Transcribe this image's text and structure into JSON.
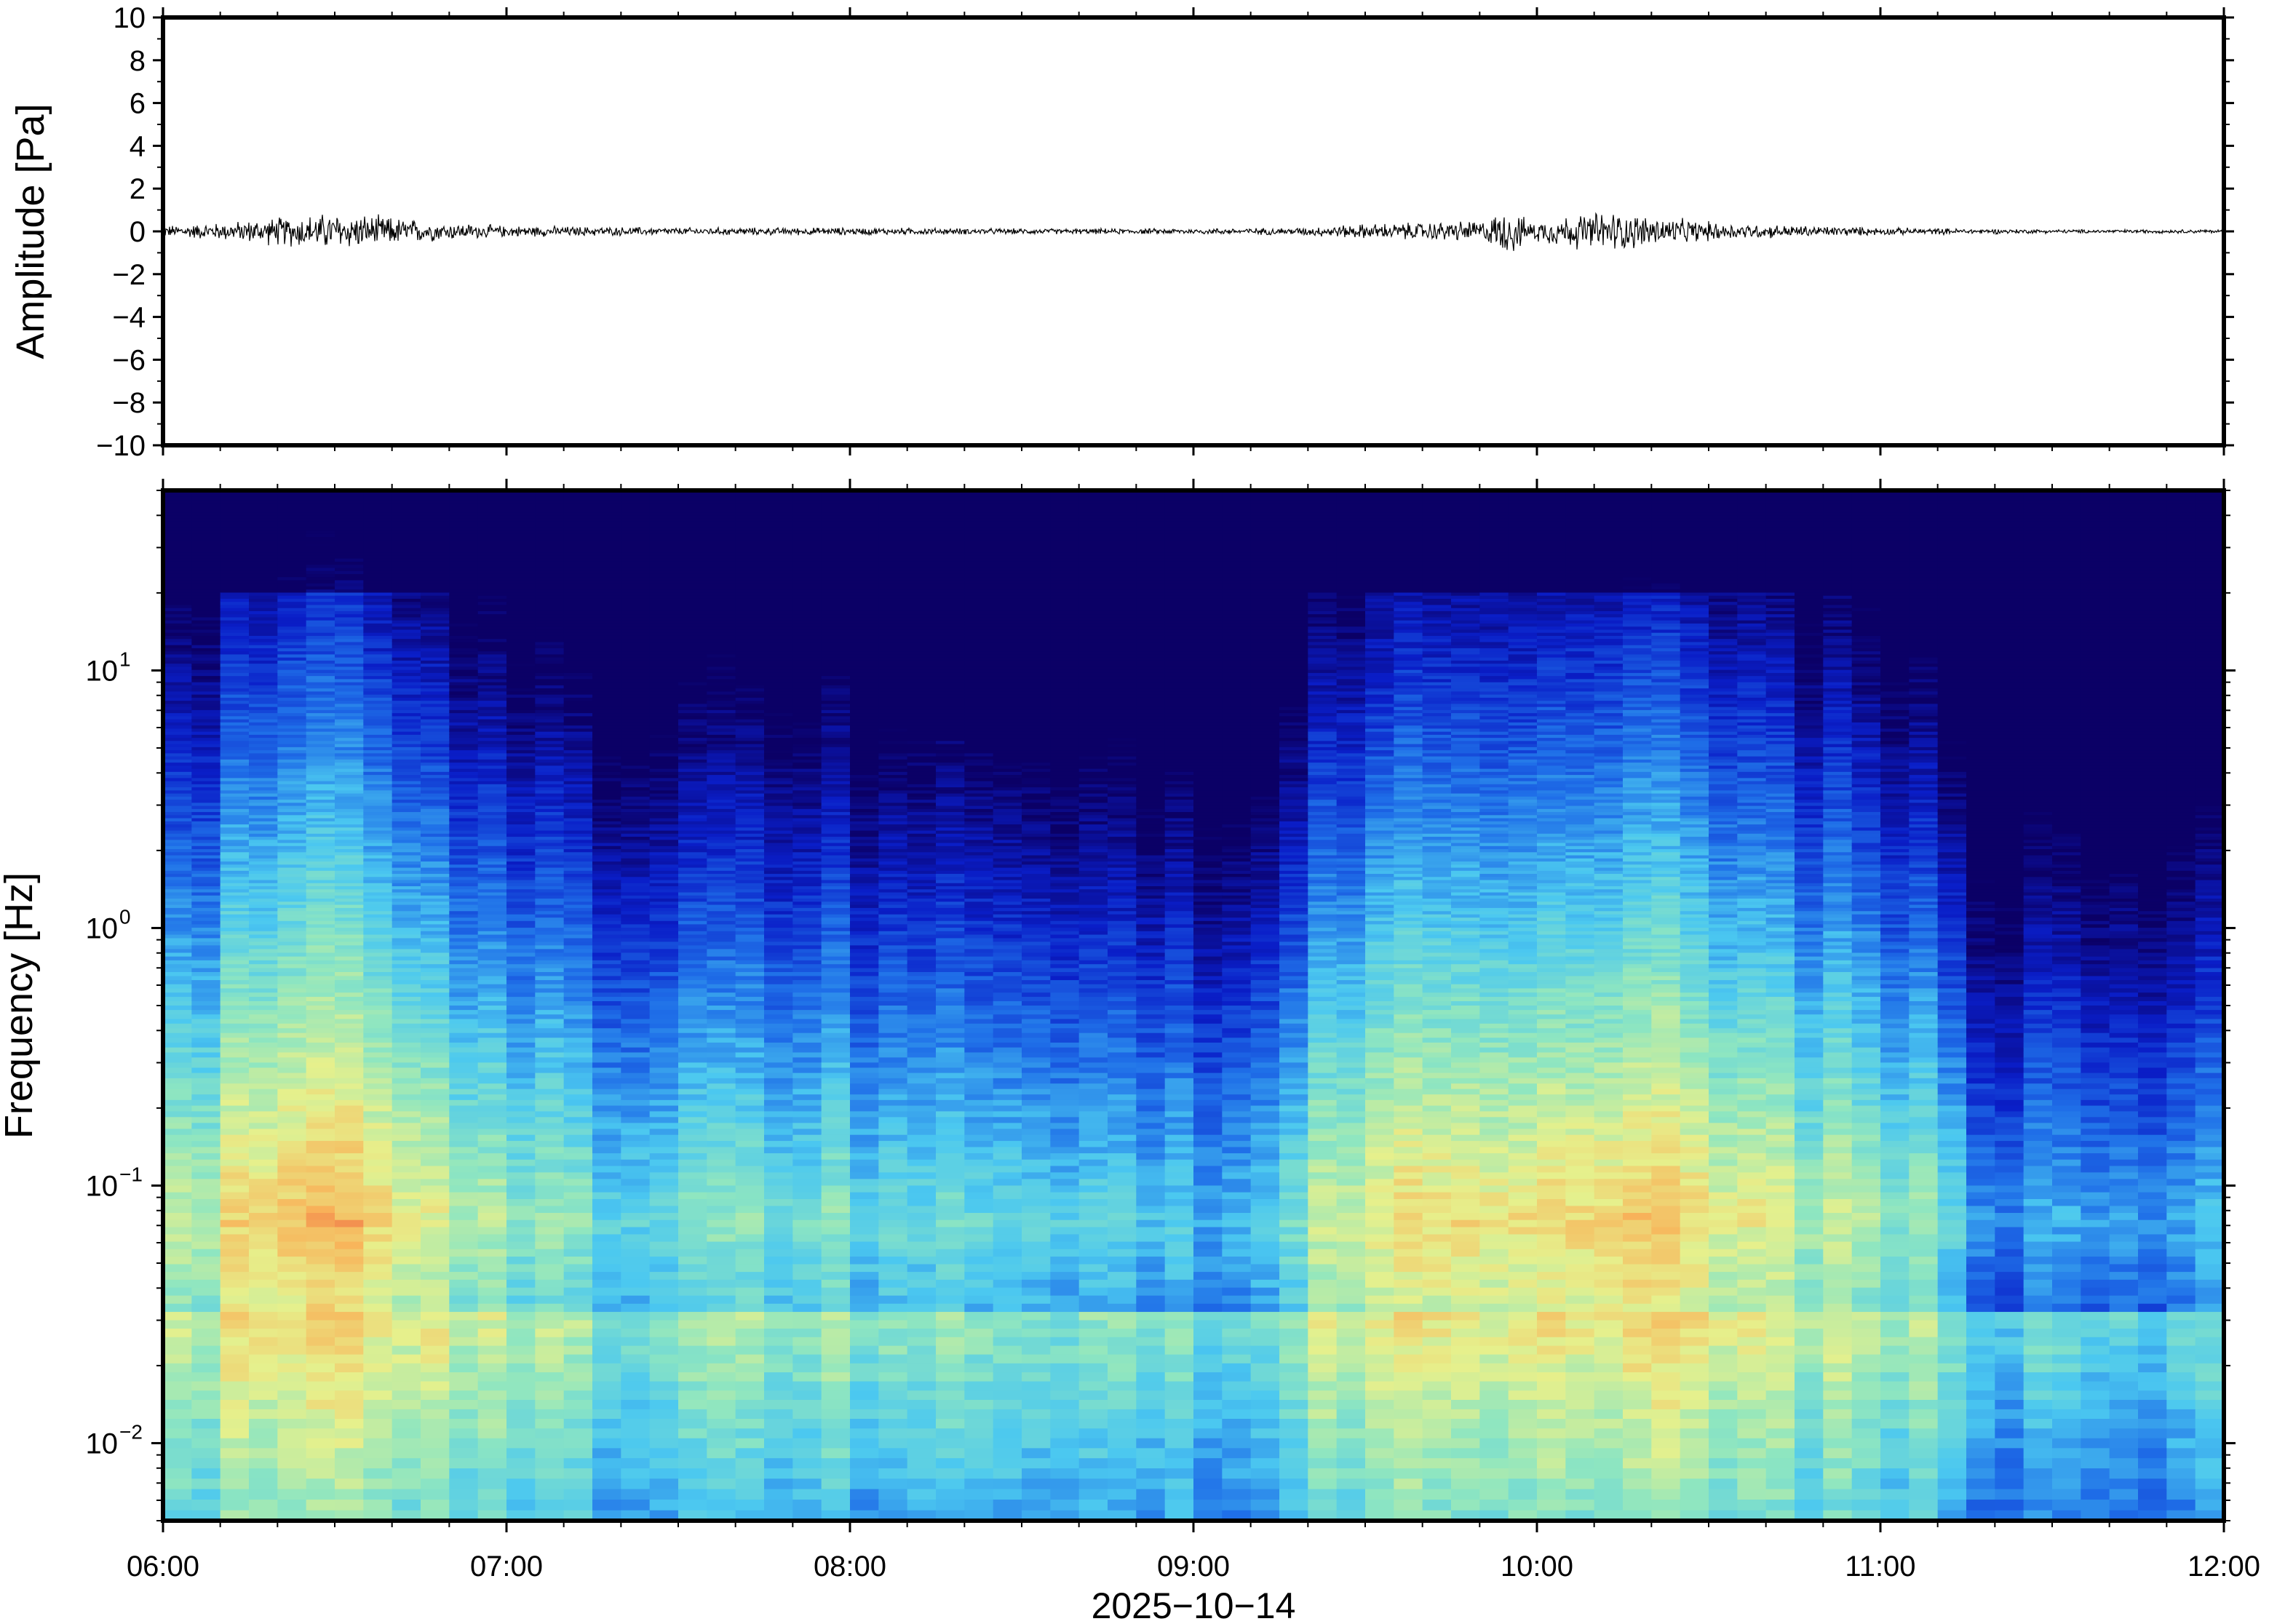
{
  "chart_data": [
    {
      "type": "line",
      "panel": "waveform",
      "ylabel": "Amplitude [Pa]",
      "ylim": [
        -10,
        10
      ],
      "yticks": [
        10,
        8,
        6,
        4,
        2,
        0,
        -2,
        -4,
        -6,
        -8,
        -10
      ],
      "ytick_labels": [
        "10",
        "8",
        "6",
        "4",
        "2",
        "0",
        "−2",
        "−4",
        "−6",
        "−8",
        "−10"
      ],
      "xlim": [
        "06:00",
        "12:00"
      ],
      "series": [
        {
          "color": "#000000",
          "envelope_time_hours": [
            6.0,
            6.2,
            6.35,
            6.5,
            6.65,
            6.8,
            7.0,
            7.5,
            8.0,
            8.5,
            9.0,
            9.3,
            9.5,
            9.7,
            9.85,
            9.92,
            9.98,
            10.1,
            10.2,
            10.3,
            10.45,
            10.6,
            10.8,
            11.0,
            11.5,
            12.0
          ],
          "envelope_amplitude_pa": [
            0.3,
            0.5,
            0.8,
            1.0,
            0.8,
            0.5,
            0.3,
            0.2,
            0.2,
            0.15,
            0.15,
            0.2,
            0.4,
            0.5,
            0.6,
            1.3,
            0.5,
            0.9,
            1.1,
            0.9,
            0.6,
            0.4,
            0.3,
            0.2,
            0.1,
            0.1
          ]
        }
      ]
    },
    {
      "type": "heatmap",
      "panel": "spectrogram",
      "ylabel": "Frequency [Hz]",
      "yscale": "log",
      "ylim": [
        0.005,
        50
      ],
      "yticks": [
        10,
        1,
        0.1,
        0.01
      ],
      "ytick_labels": [
        {
          "base": "10",
          "exp": "1"
        },
        {
          "base": "10",
          "exp": "0"
        },
        {
          "base": "10",
          "exp": "−1"
        },
        {
          "base": "10",
          "exp": "−2"
        }
      ],
      "xlabel": "2025−10−14",
      "xlim": [
        "06:00",
        "12:00"
      ],
      "xticks": [
        "06:00",
        "07:00",
        "08:00",
        "09:00",
        "10:00",
        "11:00",
        "12:00"
      ],
      "colormap": [
        "#0b0066",
        "#0a1ec8",
        "#1f6fe8",
        "#4bc8f0",
        "#8fe6c0",
        "#e6f08c",
        "#f8b45a",
        "#e8423a"
      ],
      "energy_profile_hours": [
        6.0,
        6.2,
        6.35,
        6.5,
        6.65,
        6.8,
        7.0,
        7.3,
        7.6,
        8.0,
        8.3,
        8.6,
        8.85,
        9.0,
        9.15,
        9.35,
        9.55,
        9.75,
        9.9,
        10.0,
        10.15,
        10.3,
        10.5,
        10.8,
        11.0,
        11.2,
        11.3,
        11.5,
        11.8,
        12.0
      ],
      "energy_profile_level": [
        0.55,
        0.72,
        0.85,
        0.88,
        0.8,
        0.6,
        0.5,
        0.45,
        0.48,
        0.45,
        0.42,
        0.38,
        0.3,
        0.3,
        0.35,
        0.55,
        0.72,
        0.75,
        0.8,
        0.72,
        0.85,
        0.8,
        0.7,
        0.62,
        0.55,
        0.42,
        0.2,
        0.25,
        0.28,
        0.3
      ]
    }
  ]
}
